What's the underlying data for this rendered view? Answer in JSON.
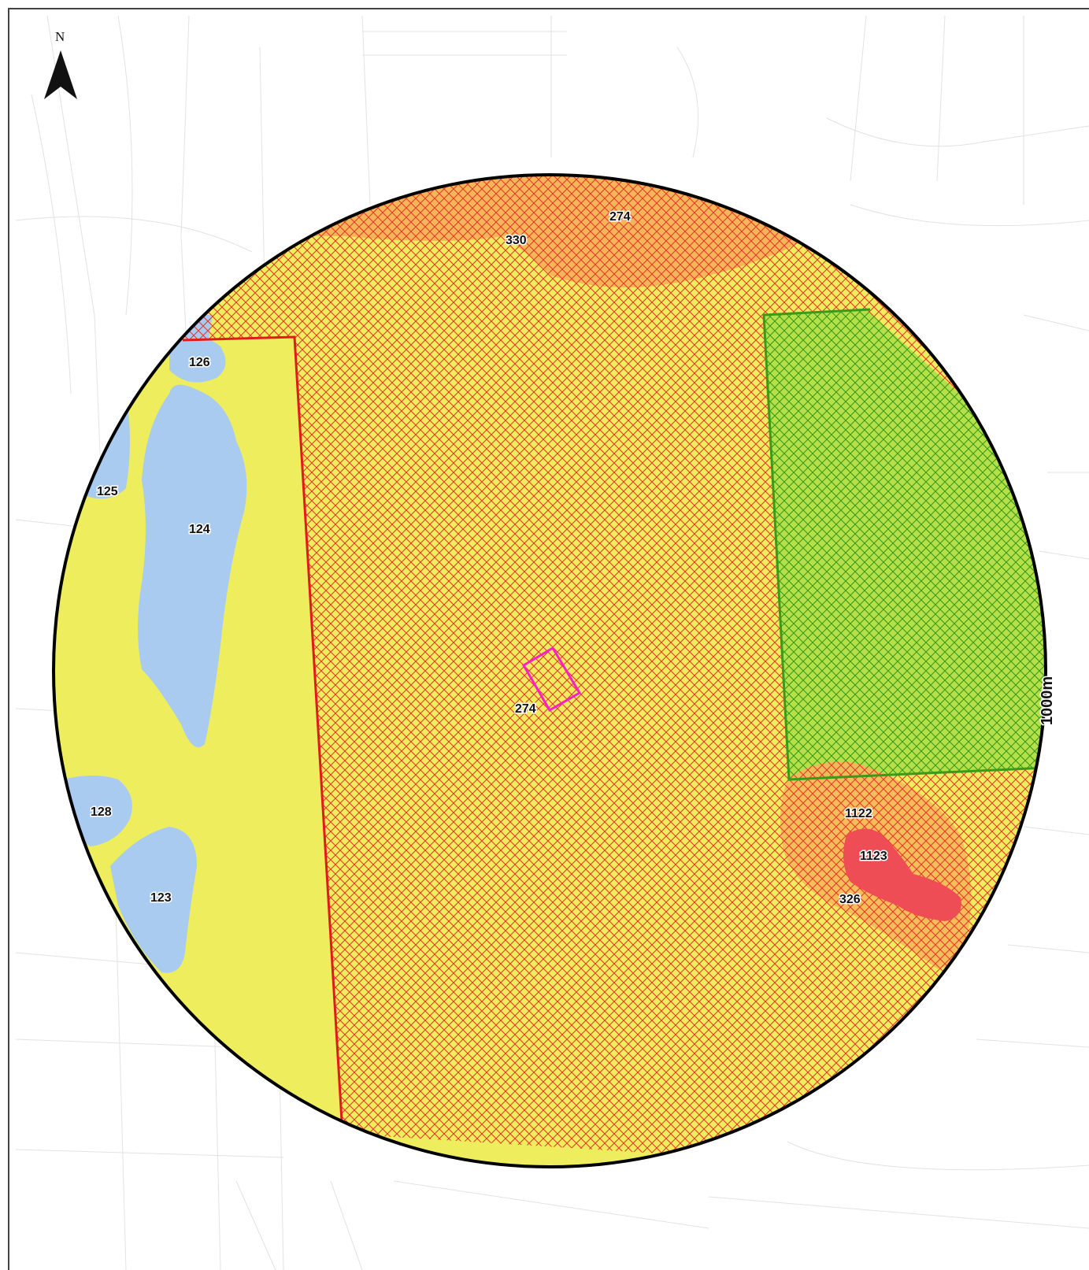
{
  "map": {
    "north_label": "N",
    "radius_label": "1000m",
    "zone_labels": {
      "top_274": "274",
      "top_330": "330",
      "center_274": "274",
      "w_126": "126",
      "w_125": "125",
      "w_124": "124",
      "w_128": "128",
      "w_123": "123",
      "e_1122": "1122",
      "e_1123": "1123",
      "e_326": "326"
    },
    "colors": {
      "base_yellow": "#eded5e",
      "orange_zone": "#f5b65a",
      "water_blue": "#a9cbf0",
      "red_zone": "#ef4d55",
      "green_zone": "#b5e04a",
      "red_hatch": "#e53a2a",
      "green_hatch": "#3a9a1a",
      "boundary_red": "#e01b1b",
      "boundary_green": "#3a9a1a",
      "site_magenta": "#ff1fc8",
      "circle_black": "#000000"
    }
  }
}
